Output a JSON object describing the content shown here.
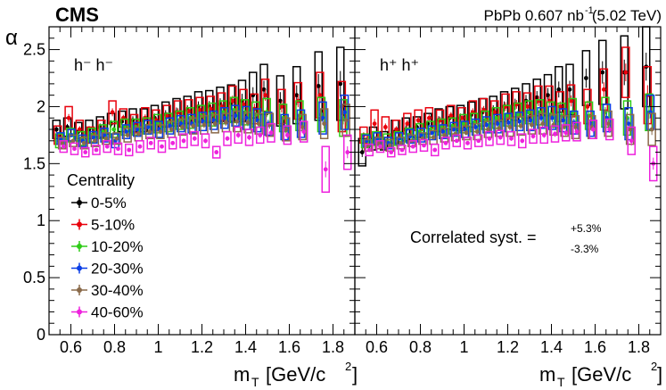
{
  "chart_data": {
    "type": "scatter",
    "experiment_label": "CMS",
    "dataset_label": "PbPb 0.607 nb",
    "dataset_superscript": "-1",
    "dataset_energy": "(5.02 TeV)",
    "ylabel": "α",
    "xlabel_main": "m",
    "xlabel_sub": "T",
    "xlabel_units": "[GeV/c",
    "xlabel_units_sup": "2",
    "xlabel_units_close": "]",
    "xlim": [
      0.5,
      1.9
    ],
    "ylim": [
      0,
      2.7
    ],
    "yticks": [
      0,
      0.5,
      1,
      1.5,
      2,
      2.5
    ],
    "ytick_labels": [
      "0",
      "0.5",
      "1",
      "1.5",
      "2",
      "2.5"
    ],
    "xticks": [
      0.6,
      0.8,
      1.0,
      1.2,
      1.4,
      1.6,
      1.8
    ],
    "xtick_labels": [
      "0.6",
      "0.8",
      "1",
      "1.2",
      "1.4",
      "1.6",
      "1.8"
    ],
    "legend_title": "Centrality",
    "legend_position": "bottom-left",
    "annotation_main": "Correlated syst. =",
    "annotation_up": "+5.3%",
    "annotation_down": "-3.3%",
    "x": [
      0.55,
      0.6,
      0.65,
      0.7,
      0.75,
      0.8,
      0.85,
      0.9,
      0.95,
      1.0,
      1.05,
      1.1,
      1.15,
      1.2,
      1.25,
      1.3,
      1.35,
      1.4,
      1.45,
      1.5,
      1.575,
      1.65,
      1.75,
      1.85
    ],
    "panels": [
      {
        "label": "h⁻ h⁻",
        "series": [
          {
            "name": "0-5%",
            "color": "#000000",
            "values": [
              1.8,
              1.82,
              1.78,
              1.8,
              1.82,
              1.85,
              1.87,
              1.88,
              1.88,
              1.9,
              1.93,
              1.95,
              1.97,
              2.0,
              2.0,
              2.02,
              2.03,
              2.05,
              2.1,
              2.15,
              2.05,
              2.1,
              2.18,
              2.2
            ],
            "syst": [
              0.08,
              0.08,
              0.08,
              0.08,
              0.09,
              0.09,
              0.09,
              0.1,
              0.1,
              0.11,
              0.11,
              0.12,
              0.12,
              0.13,
              0.14,
              0.15,
              0.16,
              0.18,
              0.2,
              0.22,
              0.22,
              0.25,
              0.3,
              0.32
            ]
          },
          {
            "name": "5-10%",
            "color": "#e8000b",
            "values": [
              1.75,
              1.9,
              1.8,
              1.75,
              1.8,
              1.95,
              1.9,
              1.85,
              1.9,
              1.88,
              1.92,
              1.95,
              1.96,
              1.97,
              1.98,
              2.0,
              2.05,
              2.02,
              1.98,
              2.1,
              2.0,
              2.05,
              2.1,
              2.0
            ],
            "syst": [
              0.08,
              0.1,
              0.08,
              0.07,
              0.08,
              0.1,
              0.08,
              0.08,
              0.09,
              0.09,
              0.09,
              0.1,
              0.1,
              0.11,
              0.11,
              0.12,
              0.13,
              0.13,
              0.13,
              0.14,
              0.15,
              0.16,
              0.2,
              0.22
            ]
          },
          {
            "name": "10-20%",
            "color": "#2ecc17",
            "values": [
              1.7,
              1.75,
              1.72,
              1.75,
              1.78,
              1.8,
              1.82,
              1.82,
              1.83,
              1.85,
              1.86,
              1.88,
              1.9,
              1.92,
              1.93,
              1.95,
              1.97,
              1.95,
              1.93,
              1.95,
              1.9,
              1.92,
              1.93,
              1.9
            ],
            "syst": [
              0.06,
              0.06,
              0.06,
              0.06,
              0.06,
              0.07,
              0.07,
              0.07,
              0.07,
              0.08,
              0.08,
              0.08,
              0.09,
              0.09,
              0.1,
              0.1,
              0.11,
              0.11,
              0.11,
              0.12,
              0.12,
              0.13,
              0.15,
              0.16
            ]
          },
          {
            "name": "20-30%",
            "color": "#0a3ee6",
            "values": [
              1.72,
              1.75,
              1.7,
              1.73,
              1.75,
              1.7,
              1.78,
              1.8,
              1.82,
              1.8,
              1.83,
              1.85,
              1.85,
              1.87,
              1.88,
              1.9,
              1.92,
              1.9,
              1.88,
              1.85,
              1.82,
              1.85,
              1.9,
              1.95
            ],
            "syst": [
              0.05,
              0.05,
              0.05,
              0.05,
              0.06,
              0.06,
              0.06,
              0.06,
              0.06,
              0.07,
              0.07,
              0.07,
              0.08,
              0.08,
              0.08,
              0.09,
              0.09,
              0.1,
              0.1,
              0.1,
              0.11,
              0.12,
              0.14,
              0.15
            ]
          },
          {
            "name": "30-40%",
            "color": "#8a6a4a",
            "values": [
              1.68,
              1.7,
              1.68,
              1.7,
              1.72,
              1.72,
              1.75,
              1.76,
              1.78,
              1.78,
              1.8,
              1.82,
              1.83,
              1.84,
              1.85,
              1.86,
              1.87,
              1.86,
              1.85,
              1.84,
              1.8,
              1.82,
              1.85,
              1.88
            ],
            "syst": [
              0.05,
              0.05,
              0.05,
              0.05,
              0.05,
              0.05,
              0.06,
              0.06,
              0.06,
              0.06,
              0.07,
              0.07,
              0.07,
              0.08,
              0.08,
              0.08,
              0.09,
              0.09,
              0.09,
              0.1,
              0.1,
              0.11,
              0.13,
              0.14
            ]
          },
          {
            "name": "40-60%",
            "color": "#ee22dd",
            "values": [
              1.65,
              1.63,
              1.6,
              1.62,
              1.65,
              1.63,
              1.62,
              1.65,
              1.68,
              1.65,
              1.68,
              1.7,
              1.72,
              1.7,
              1.6,
              1.72,
              1.75,
              1.73,
              1.75,
              1.77,
              1.75,
              1.78,
              1.45,
              1.6
            ],
            "syst": [
              0.05,
              0.05,
              0.04,
              0.04,
              0.05,
              0.05,
              0.05,
              0.05,
              0.05,
              0.05,
              0.05,
              0.06,
              0.06,
              0.06,
              0.05,
              0.06,
              0.07,
              0.07,
              0.07,
              0.08,
              0.08,
              0.09,
              0.2,
              0.15
            ]
          }
        ]
      },
      {
        "label": "h⁺ h⁺",
        "series": [
          {
            "name": "0-5%",
            "color": "#000000",
            "values": [
              1.6,
              1.72,
              1.7,
              1.78,
              1.8,
              1.82,
              1.85,
              1.88,
              1.9,
              1.9,
              1.93,
              1.95,
              1.97,
              2.0,
              2.02,
              2.05,
              2.08,
              2.1,
              2.15,
              2.15,
              2.25,
              2.3,
              2.3,
              2.35
            ],
            "syst": [
              0.12,
              0.1,
              0.08,
              0.1,
              0.1,
              0.09,
              0.09,
              0.1,
              0.1,
              0.11,
              0.11,
              0.12,
              0.12,
              0.13,
              0.14,
              0.15,
              0.16,
              0.18,
              0.2,
              0.22,
              0.24,
              0.28,
              0.32,
              0.35
            ]
          },
          {
            "name": "5-10%",
            "color": "#e8000b",
            "values": [
              1.75,
              1.85,
              1.82,
              1.8,
              1.85,
              1.88,
              1.9,
              1.88,
              1.92,
              1.9,
              1.95,
              1.97,
              1.95,
              2.0,
              2.02,
              2.0,
              2.05,
              2.05,
              2.0,
              2.05,
              2.0,
              2.15,
              2.3,
              2.1
            ],
            "syst": [
              0.07,
              0.12,
              0.09,
              0.08,
              0.09,
              0.09,
              0.09,
              0.09,
              0.09,
              0.09,
              0.1,
              0.1,
              0.1,
              0.11,
              0.11,
              0.12,
              0.13,
              0.13,
              0.13,
              0.14,
              0.15,
              0.18,
              0.22,
              0.25
            ]
          },
          {
            "name": "10-20%",
            "color": "#2ecc17",
            "values": [
              1.7,
              1.72,
              1.7,
              1.72,
              1.75,
              1.78,
              1.8,
              1.82,
              1.83,
              1.85,
              1.86,
              1.88,
              1.9,
              1.92,
              1.93,
              1.95,
              1.95,
              1.93,
              1.92,
              1.95,
              1.92,
              1.95,
              1.9,
              1.95
            ],
            "syst": [
              0.06,
              0.06,
              0.06,
              0.06,
              0.06,
              0.07,
              0.07,
              0.07,
              0.07,
              0.08,
              0.08,
              0.08,
              0.09,
              0.09,
              0.1,
              0.1,
              0.11,
              0.11,
              0.11,
              0.12,
              0.12,
              0.13,
              0.15,
              0.16
            ]
          },
          {
            "name": "20-30%",
            "color": "#0a3ee6",
            "values": [
              1.7,
              1.72,
              1.68,
              1.72,
              1.74,
              1.75,
              1.77,
              1.78,
              1.8,
              1.8,
              1.82,
              1.84,
              1.85,
              1.86,
              1.87,
              1.88,
              1.9,
              1.9,
              1.88,
              1.86,
              1.85,
              1.9,
              1.85,
              1.95
            ],
            "syst": [
              0.05,
              0.05,
              0.05,
              0.05,
              0.06,
              0.06,
              0.06,
              0.06,
              0.06,
              0.07,
              0.07,
              0.07,
              0.08,
              0.08,
              0.08,
              0.09,
              0.09,
              0.1,
              0.1,
              0.1,
              0.11,
              0.12,
              0.14,
              0.15
            ]
          },
          {
            "name": "30-40%",
            "color": "#8a6a4a",
            "values": [
              1.66,
              1.68,
              1.66,
              1.68,
              1.7,
              1.72,
              1.73,
              1.75,
              1.76,
              1.77,
              1.78,
              1.8,
              1.81,
              1.82,
              1.83,
              1.84,
              1.85,
              1.84,
              1.83,
              1.82,
              1.82,
              1.85,
              1.8,
              1.8
            ],
            "syst": [
              0.05,
              0.05,
              0.05,
              0.05,
              0.05,
              0.05,
              0.06,
              0.06,
              0.06,
              0.06,
              0.07,
              0.07,
              0.07,
              0.08,
              0.08,
              0.08,
              0.09,
              0.09,
              0.09,
              0.1,
              0.1,
              0.11,
              0.13,
              0.14
            ]
          },
          {
            "name": "40-60%",
            "color": "#ee22dd",
            "values": [
              1.62,
              1.65,
              1.6,
              1.62,
              1.65,
              1.66,
              1.62,
              1.68,
              1.7,
              1.68,
              1.7,
              1.72,
              1.73,
              1.72,
              1.7,
              1.74,
              1.75,
              1.76,
              1.77,
              1.78,
              1.8,
              1.8,
              1.7,
              1.5
            ],
            "syst": [
              0.05,
              0.05,
              0.04,
              0.04,
              0.05,
              0.05,
              0.05,
              0.05,
              0.05,
              0.05,
              0.05,
              0.06,
              0.06,
              0.06,
              0.06,
              0.06,
              0.07,
              0.07,
              0.07,
              0.08,
              0.08,
              0.09,
              0.12,
              0.15
            ]
          }
        ]
      }
    ]
  }
}
